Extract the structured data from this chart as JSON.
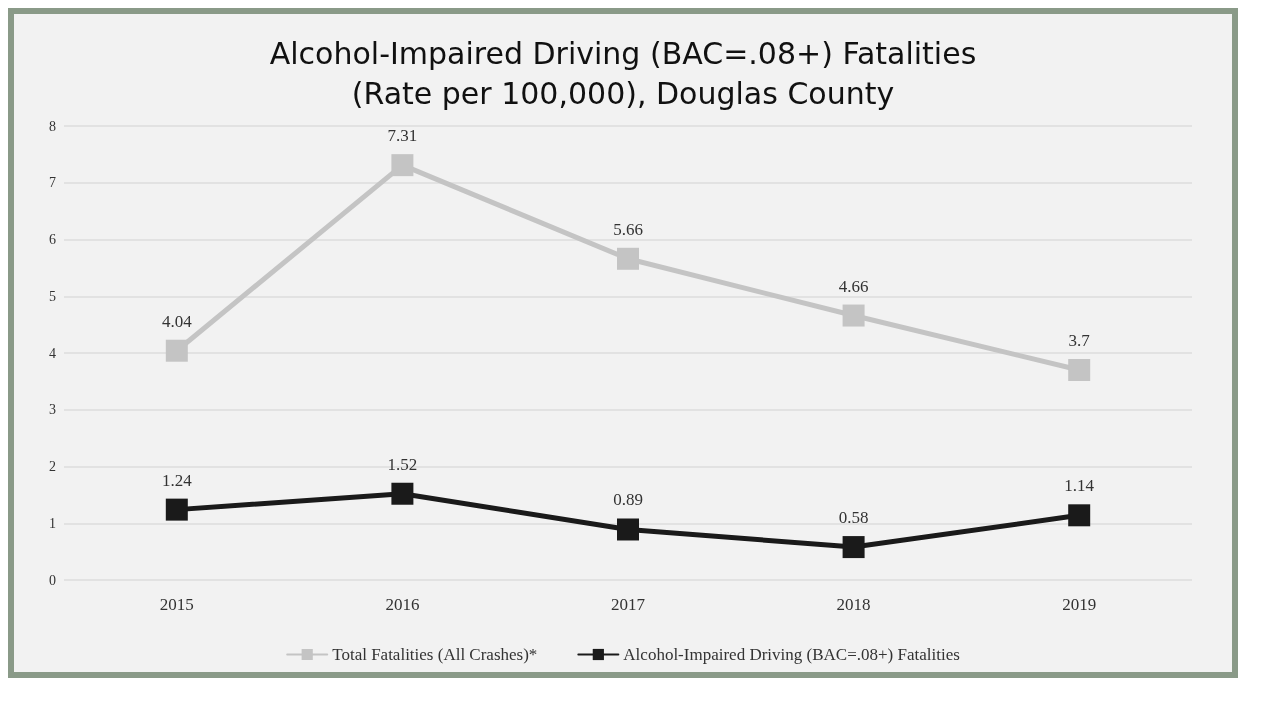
{
  "chart_data": {
    "type": "line",
    "title": "Alcohol-Impaired Driving (BAC=.08+) Fatalities\n(Rate per 100,000), Douglas County",
    "categories": [
      "2015",
      "2016",
      "2017",
      "2018",
      "2019"
    ],
    "series": [
      {
        "name": "Total Fatalities (All Crashes)*",
        "color": "#c4c4c4",
        "values": [
          4.04,
          7.31,
          5.66,
          4.66,
          3.7
        ]
      },
      {
        "name": "Alcohol-Impaired Driving (BAC=.08+) Fatalities",
        "color": "#1a1a1a",
        "values": [
          1.24,
          1.52,
          0.89,
          0.58,
          1.14
        ]
      }
    ],
    "ylim": [
      0,
      8
    ],
    "yticks": [
      0,
      1,
      2,
      3,
      4,
      5,
      6,
      7,
      8
    ],
    "grid": "y",
    "legend": "bottom",
    "marker": "square",
    "line_style": "solid",
    "data_labels": true
  }
}
